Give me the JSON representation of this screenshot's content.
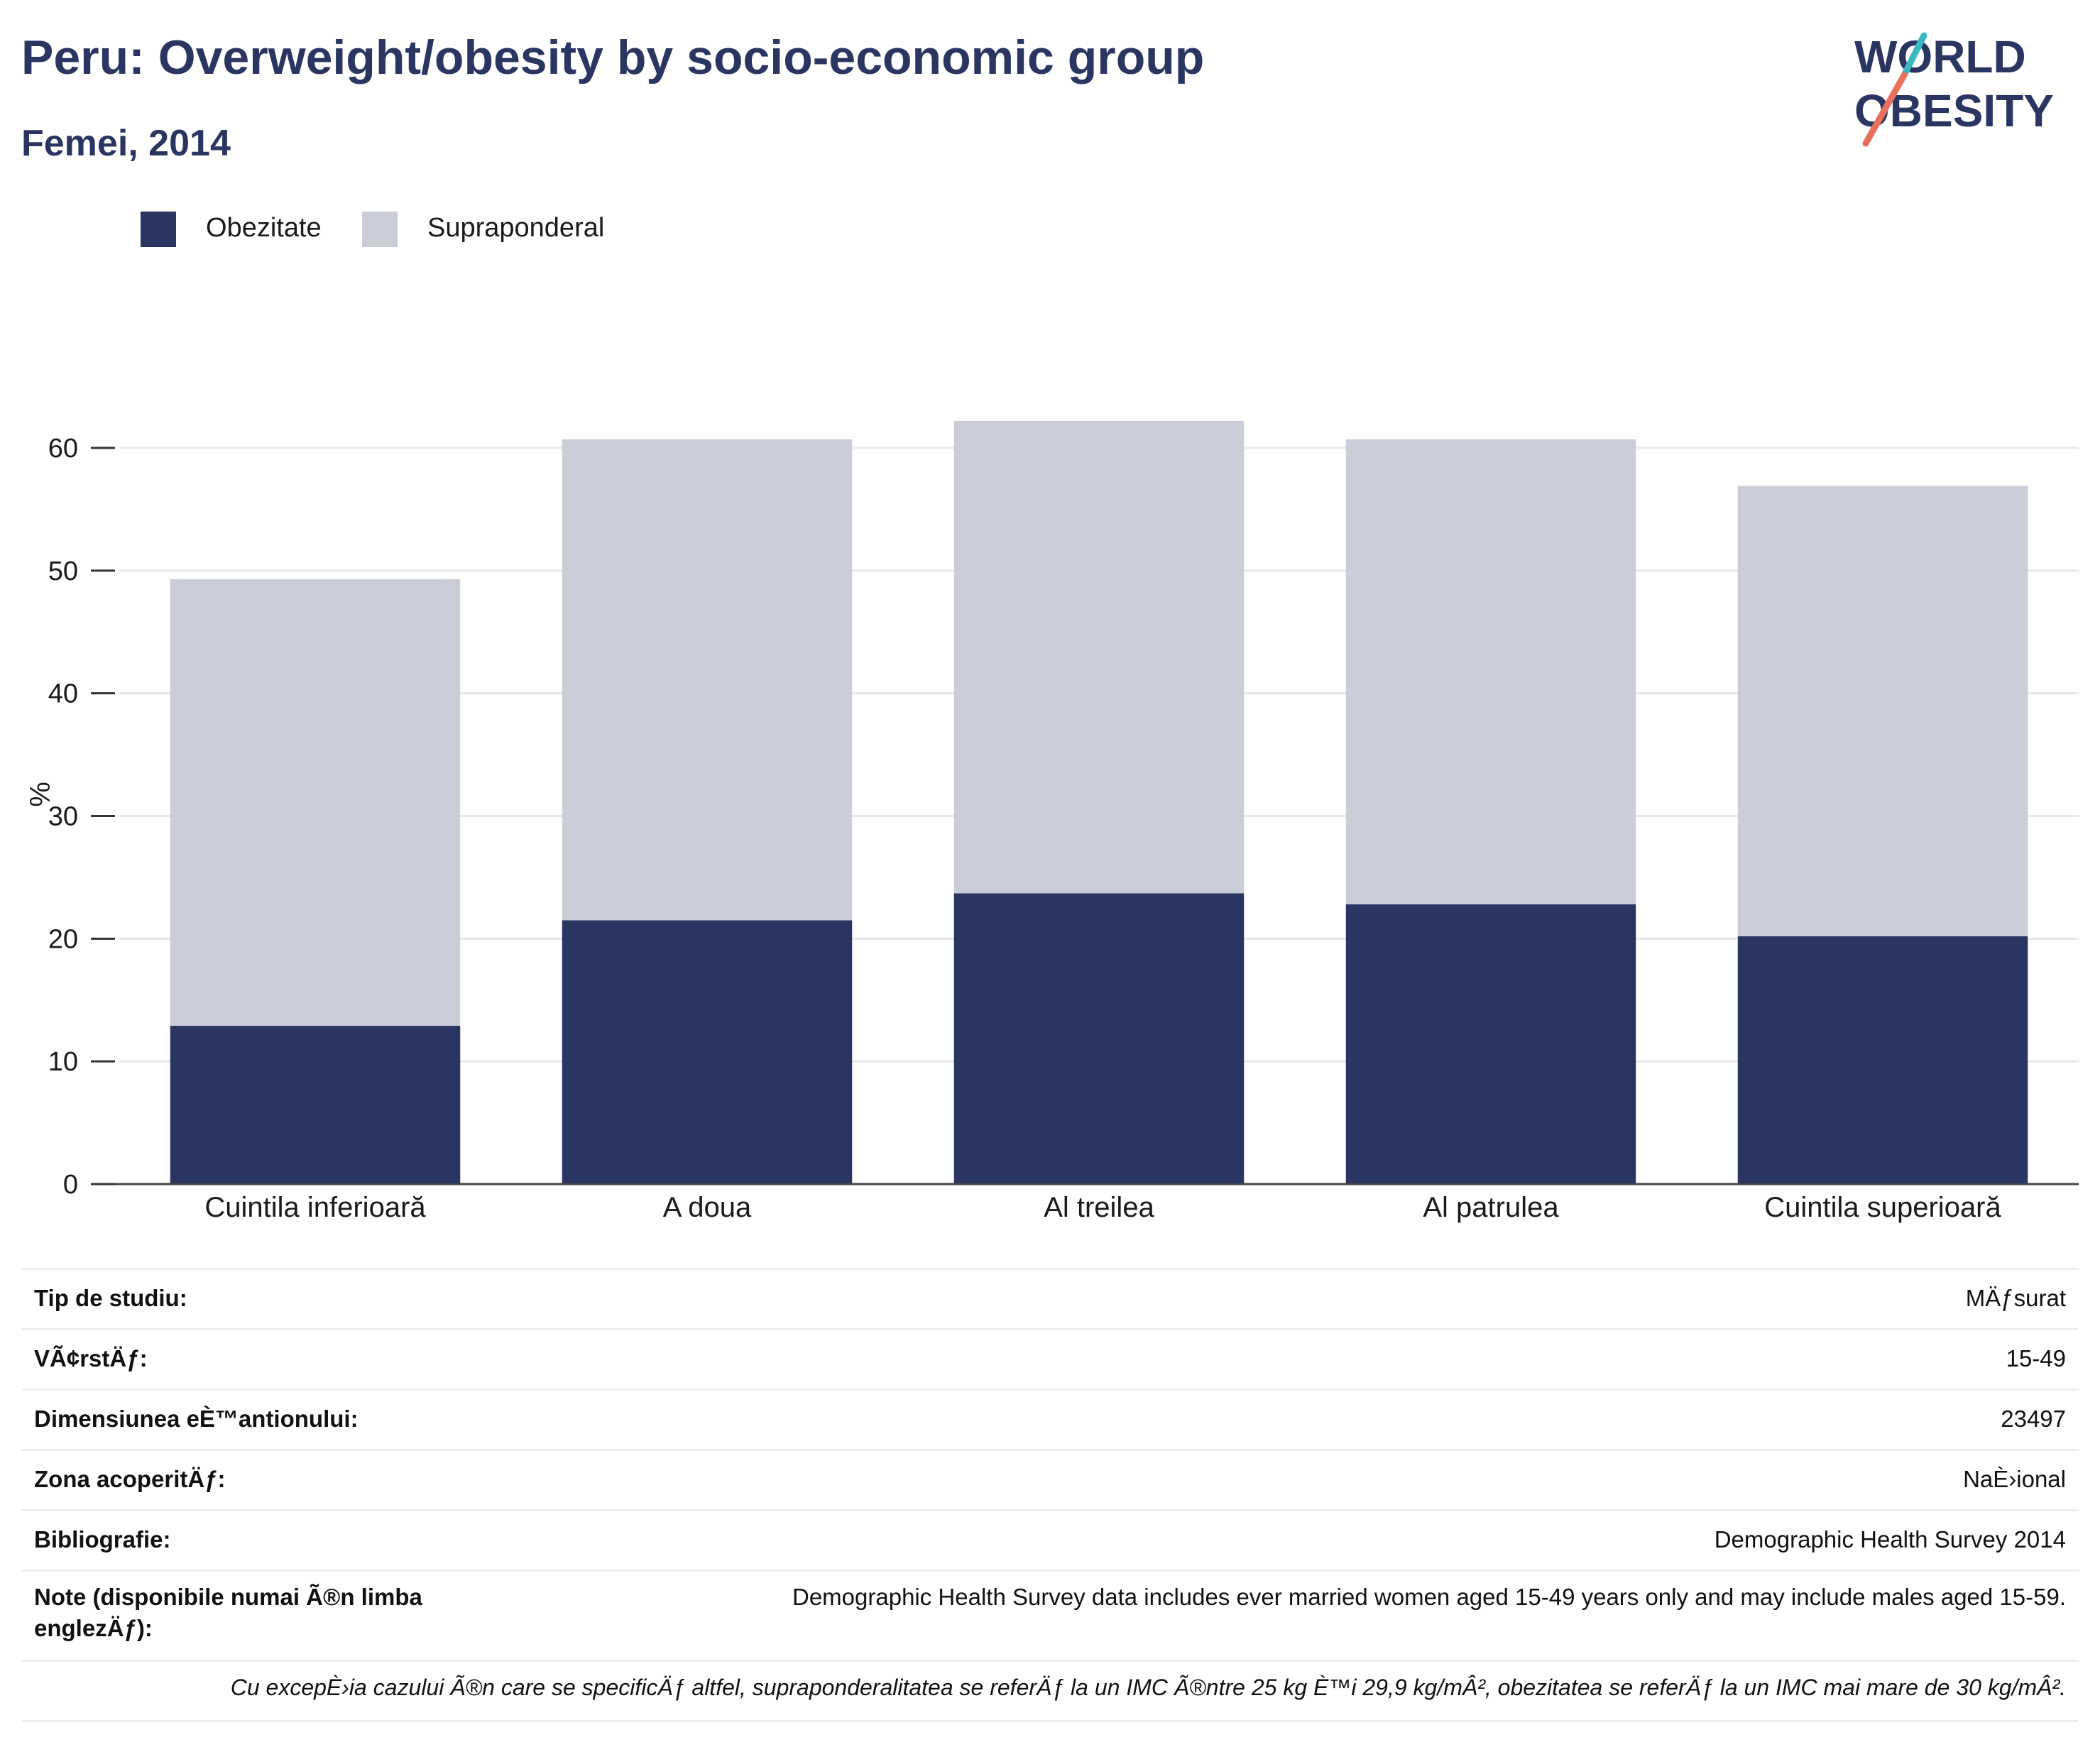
{
  "header": {
    "title": "Peru: Overweight/obesity by socio-economic group",
    "subtitle": "Femei, 2014"
  },
  "logo": {
    "line1": "WORLD",
    "line2": "OBESITY",
    "text_color": "#2a3562",
    "accent1": "#3bb8c3",
    "accent2": "#e8705f"
  },
  "legend": {
    "items": [
      {
        "label": "Obezitate",
        "color": "#2a3562"
      },
      {
        "label": "Supraponderal",
        "color": "#cacdd8"
      }
    ]
  },
  "chart_data": {
    "type": "bar",
    "stacked": true,
    "categories": [
      "Cuintila inferioară",
      "A doua",
      "Al treilea",
      "Al patrulea",
      "Cuintila superioară"
    ],
    "series": [
      {
        "name": "Obezitate",
        "color": "#2a3562",
        "values": [
          12.9,
          21.5,
          23.7,
          22.8,
          20.2
        ]
      },
      {
        "name": "Supraponderal",
        "color": "#cacdd8",
        "values": [
          36.4,
          39.2,
          38.5,
          37.9,
          36.7
        ]
      }
    ],
    "ylabel": "%",
    "ylim": [
      0,
      67
    ],
    "yticks": [
      0,
      10,
      20,
      30,
      40,
      50,
      60
    ],
    "grid": true
  },
  "info": {
    "rows": [
      {
        "key": "Tip de studiu:",
        "value": "MÄƒsurat"
      },
      {
        "key": "VÃ¢rstÄƒ:",
        "value": "15-49"
      },
      {
        "key": "Dimensiunea eÈ™antionului:",
        "value": "23497"
      },
      {
        "key": "Zona acoperitÄƒ:",
        "value": "NaÈ›ional"
      },
      {
        "key": "Bibliografie:",
        "value": "Demographic Health Survey 2014"
      },
      {
        "key": "Note (disponibile numai Ã®n limba englezÄƒ):",
        "value": "Demographic Health Survey data includes ever married women aged 15-49 years only and may include males aged 15-59."
      }
    ],
    "footnote": "Cu excepÈ›ia cazului Ã®n care se specificÄƒ altfel, supraponderalitatea se referÄƒ la un IMC Ã®ntre 25 kg È™i 29,9 kg/mÂ², obezitatea se referÄƒ la un IMC mai mare de 30 kg/mÂ²."
  }
}
